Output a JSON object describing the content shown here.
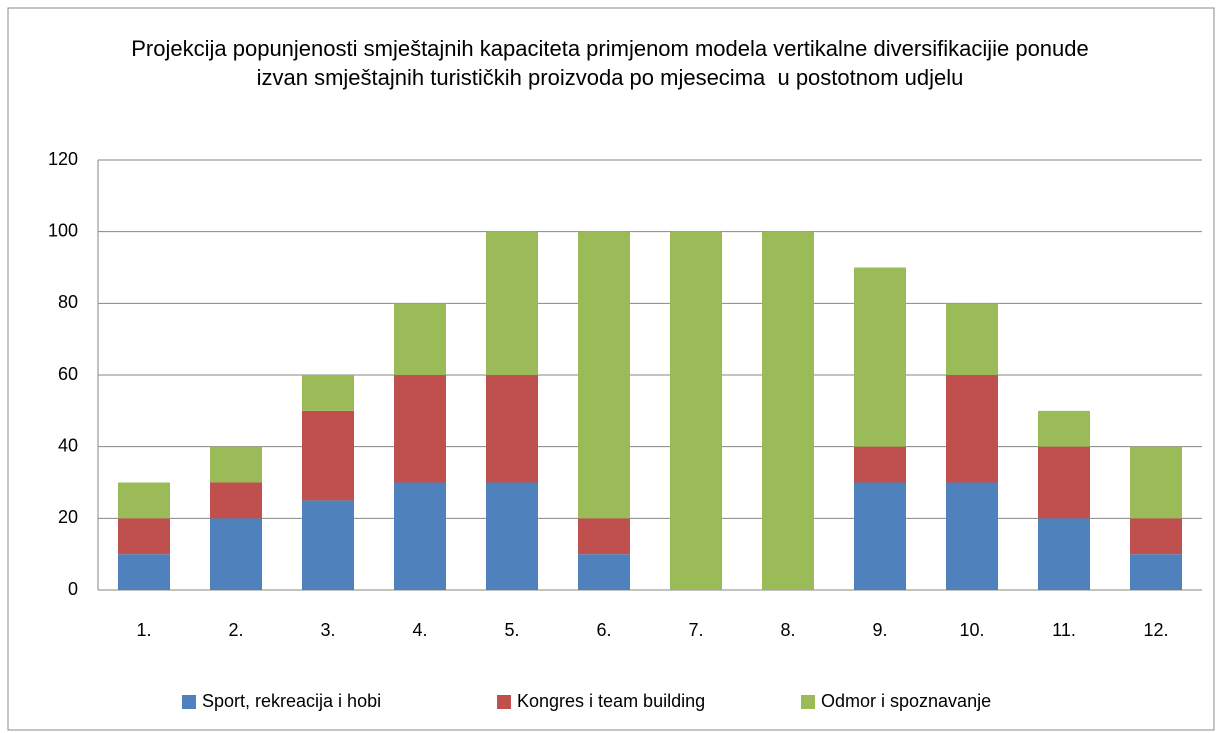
{
  "chart_data": {
    "type": "stacked-bar",
    "title": "Projekcija popunjenosti smještajnih kapaciteta primjenom modela vertikalne diversifikacijie ponude izvan smještajnih turističkih proizvoda po mjesecima  u postotnom udjelu",
    "categories": [
      "1.",
      "2.",
      "3.",
      "4.",
      "5.",
      "6.",
      "7.",
      "8.",
      "9.",
      "10.",
      "11.",
      "12."
    ],
    "series": [
      {
        "name": "Sport, rekreacija i hobi",
        "color": "#4f81bd",
        "values": [
          10,
          20,
          25,
          30,
          30,
          10,
          0,
          0,
          30,
          30,
          20,
          10
        ]
      },
      {
        "name": "Kongres i team building",
        "color": "#c0504d",
        "values": [
          10,
          10,
          25,
          30,
          30,
          10,
          0,
          0,
          10,
          30,
          20,
          10
        ]
      },
      {
        "name": "Odmor i spoznavanje",
        "color": "#9bbb59",
        "values": [
          10,
          10,
          10,
          20,
          40,
          80,
          100,
          100,
          50,
          20,
          10,
          20
        ]
      }
    ],
    "ylim": [
      0,
      120
    ],
    "yticks": [
      0,
      20,
      40,
      60,
      80,
      100,
      120
    ],
    "grid": true,
    "legend": "bottom"
  }
}
